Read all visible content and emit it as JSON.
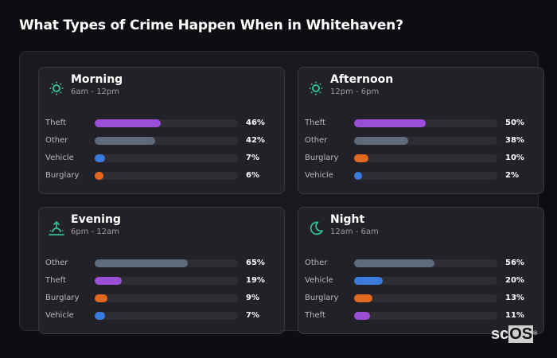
{
  "title": "What Types of Crime Happen When in Whitehaven?",
  "colors": {
    "Theft": "#9b4fd8",
    "Other": "#5f6a7d",
    "Vehicle": "#3a7bdc",
    "Burglary": "#e0691f",
    "icon": "#2fbf8f"
  },
  "cards": [
    {
      "name": "Morning",
      "range": "6am - 12pm",
      "icon": "sun-icon",
      "rows": [
        {
          "label": "Theft",
          "pct": "46%",
          "value": 46
        },
        {
          "label": "Other",
          "pct": "42%",
          "value": 42
        },
        {
          "label": "Vehicle",
          "pct": "7%",
          "value": 7
        },
        {
          "label": "Burglary",
          "pct": "6%",
          "value": 6
        }
      ]
    },
    {
      "name": "Afternoon",
      "range": "12pm - 6pm",
      "icon": "sun-icon",
      "rows": [
        {
          "label": "Theft",
          "pct": "50%",
          "value": 50
        },
        {
          "label": "Other",
          "pct": "38%",
          "value": 38
        },
        {
          "label": "Burglary",
          "pct": "10%",
          "value": 10
        },
        {
          "label": "Vehicle",
          "pct": "2%",
          "value": 2
        }
      ]
    },
    {
      "name": "Evening",
      "range": "6pm - 12am",
      "icon": "sunset-icon",
      "rows": [
        {
          "label": "Other",
          "pct": "65%",
          "value": 65
        },
        {
          "label": "Theft",
          "pct": "19%",
          "value": 19
        },
        {
          "label": "Burglary",
          "pct": "9%",
          "value": 9
        },
        {
          "label": "Vehicle",
          "pct": "7%",
          "value": 7
        }
      ]
    },
    {
      "name": "Night",
      "range": "12am - 6am",
      "icon": "moon-icon",
      "rows": [
        {
          "label": "Other",
          "pct": "56%",
          "value": 56
        },
        {
          "label": "Vehicle",
          "pct": "20%",
          "value": 20
        },
        {
          "label": "Burglary",
          "pct": "13%",
          "value": 13
        },
        {
          "label": "Theft",
          "pct": "11%",
          "value": 11
        }
      ]
    }
  ],
  "logo": {
    "sc": "sc",
    "os": "OS",
    "reg": "®"
  },
  "chart_data": {
    "type": "bar",
    "orientation": "horizontal",
    "title": "What Types of Crime Happen When in Whitehaven?",
    "unit": "%",
    "xlim": [
      0,
      100
    ],
    "panels": [
      {
        "title": "Morning",
        "subtitle": "6am - 12pm",
        "categories": [
          "Theft",
          "Other",
          "Vehicle",
          "Burglary"
        ],
        "values": [
          46,
          42,
          7,
          6
        ]
      },
      {
        "title": "Afternoon",
        "subtitle": "12pm - 6pm",
        "categories": [
          "Theft",
          "Other",
          "Burglary",
          "Vehicle"
        ],
        "values": [
          50,
          38,
          10,
          2
        ]
      },
      {
        "title": "Evening",
        "subtitle": "6pm - 12am",
        "categories": [
          "Other",
          "Theft",
          "Burglary",
          "Vehicle"
        ],
        "values": [
          65,
          19,
          9,
          7
        ]
      },
      {
        "title": "Night",
        "subtitle": "12am - 6am",
        "categories": [
          "Other",
          "Vehicle",
          "Burglary",
          "Theft"
        ],
        "values": [
          56,
          20,
          13,
          11
        ]
      }
    ],
    "grid": false,
    "legend": "none"
  }
}
